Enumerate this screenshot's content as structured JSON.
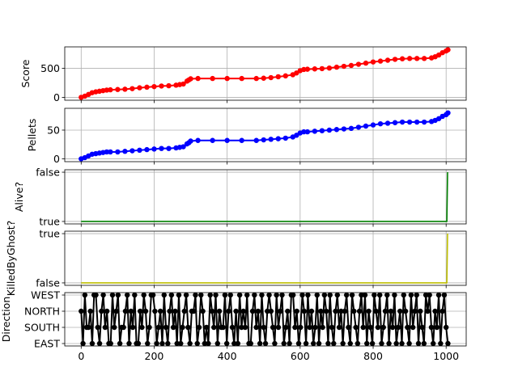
{
  "chart_data": [
    {
      "type": "line",
      "ylabel": "Score",
      "xlim": [
        -45,
        1055
      ],
      "ylim": [
        -50,
        870
      ],
      "xticks": [
        0,
        200,
        400,
        600,
        800,
        1000
      ],
      "yticks": [
        0,
        500
      ],
      "ytick_labels": [
        "0",
        "500"
      ],
      "grid": true,
      "markers": true,
      "color": "#ff0000",
      "x": [
        0,
        10,
        20,
        30,
        40,
        50,
        60,
        70,
        80,
        100,
        120,
        140,
        160,
        180,
        200,
        220,
        240,
        260,
        270,
        280,
        290,
        295,
        300,
        320,
        360,
        400,
        440,
        480,
        500,
        520,
        540,
        560,
        580,
        590,
        600,
        610,
        620,
        640,
        660,
        680,
        700,
        720,
        740,
        760,
        780,
        800,
        820,
        840,
        860,
        880,
        900,
        920,
        940,
        960,
        970,
        980,
        990,
        1000,
        1005
      ],
      "values": [
        0,
        20,
        50,
        80,
        95,
        105,
        115,
        125,
        130,
        135,
        140,
        150,
        165,
        175,
        185,
        195,
        200,
        210,
        220,
        230,
        280,
        300,
        320,
        325,
        325,
        325,
        325,
        325,
        330,
        340,
        355,
        370,
        390,
        420,
        460,
        480,
        485,
        490,
        495,
        505,
        520,
        535,
        550,
        570,
        590,
        610,
        625,
        640,
        655,
        665,
        670,
        670,
        670,
        680,
        700,
        730,
        770,
        800,
        820
      ]
    },
    {
      "type": "line",
      "ylabel": "Pellets",
      "xlim": [
        -45,
        1055
      ],
      "ylim": [
        -5,
        88
      ],
      "xticks": [
        0,
        200,
        400,
        600,
        800,
        1000
      ],
      "yticks": [
        0,
        50
      ],
      "ytick_labels": [
        "0",
        "50"
      ],
      "grid": true,
      "markers": true,
      "color": "#0000ff",
      "x": [
        0,
        10,
        20,
        30,
        40,
        50,
        60,
        70,
        80,
        100,
        120,
        140,
        160,
        180,
        200,
        220,
        240,
        260,
        270,
        280,
        290,
        295,
        300,
        320,
        360,
        400,
        440,
        480,
        500,
        520,
        540,
        560,
        580,
        590,
        600,
        610,
        620,
        640,
        660,
        680,
        700,
        720,
        740,
        760,
        780,
        800,
        820,
        840,
        860,
        880,
        900,
        920,
        940,
        960,
        970,
        980,
        990,
        1000,
        1005
      ],
      "values": [
        0,
        2,
        5,
        8,
        9,
        10,
        11,
        12,
        12,
        12,
        13,
        14,
        15,
        16,
        17,
        18,
        18,
        19,
        20,
        21,
        26,
        28,
        31,
        32,
        32,
        32,
        32,
        32,
        33,
        34,
        35,
        36,
        38,
        41,
        45,
        47,
        47,
        48,
        49,
        50,
        51,
        52,
        53,
        55,
        57,
        59,
        61,
        62,
        63,
        64,
        64,
        64,
        64,
        65,
        67,
        70,
        74,
        77,
        80
      ]
    },
    {
      "type": "line",
      "ylabel": "Alive?",
      "xlim": [
        -45,
        1055
      ],
      "ylim": [
        -0.05,
        1.05
      ],
      "xticks": [
        0,
        200,
        400,
        600,
        800,
        1000
      ],
      "yticks": [
        0,
        1
      ],
      "ytick_labels": [
        "true",
        "false"
      ],
      "grid": true,
      "markers": false,
      "color": "#008000",
      "x": [
        0,
        1002,
        1004
      ],
      "values": [
        0,
        0,
        1
      ]
    },
    {
      "type": "line",
      "ylabel": "KilledByGhost?",
      "xlim": [
        -45,
        1055
      ],
      "ylim": [
        -0.05,
        1.05
      ],
      "xticks": [
        0,
        200,
        400,
        600,
        800,
        1000
      ],
      "yticks": [
        0,
        1
      ],
      "ytick_labels": [
        "false",
        "true"
      ],
      "grid": true,
      "markers": false,
      "color": "#bfbf00",
      "x": [
        0,
        1002,
        1004
      ],
      "values": [
        0,
        0,
        1
      ]
    },
    {
      "type": "line",
      "ylabel": "Direction",
      "xlim": [
        -45,
        1055
      ],
      "ylim": [
        -0.15,
        3.15
      ],
      "xticks": [
        0,
        200,
        400,
        600,
        800,
        1000
      ],
      "xtick_labels": [
        "0",
        "200",
        "400",
        "600",
        "800",
        "1000"
      ],
      "yticks": [
        0,
        1,
        2,
        3
      ],
      "ytick_labels": [
        "EAST",
        "SOUTH",
        "NORTH",
        "WEST"
      ],
      "grid": true,
      "markers": true,
      "color": "#000000",
      "x_range": [
        0,
        1005
      ],
      "values": [
        2,
        0,
        3,
        1,
        1,
        2,
        0,
        3,
        3,
        1,
        0,
        2,
        3,
        1,
        2,
        0,
        0,
        3,
        1,
        2,
        3,
        0,
        1,
        1,
        2,
        3,
        0,
        2,
        1,
        3,
        0,
        0,
        2,
        1,
        3,
        2,
        0,
        1,
        3,
        3,
        2,
        0,
        1,
        2,
        0,
        3,
        1,
        0,
        2,
        3,
        1,
        2,
        0,
        3,
        0,
        1,
        2,
        3,
        1,
        0,
        2,
        2,
        3,
        0,
        1,
        3,
        2,
        0,
        1,
        0,
        3,
        2,
        1,
        3,
        0,
        2,
        1,
        1,
        3,
        0,
        2,
        3,
        1,
        0,
        2,
        0,
        3,
        1,
        2,
        1,
        3,
        0,
        0,
        2,
        3,
        1,
        2,
        0,
        3,
        1,
        0,
        2,
        3,
        2,
        1,
        0,
        3,
        1,
        2,
        3,
        0,
        1,
        2,
        0,
        3,
        3,
        1,
        2,
        0,
        1,
        3,
        2,
        0,
        3,
        1,
        2,
        0,
        1,
        3,
        0,
        2,
        1,
        3,
        2,
        0,
        3,
        1,
        0,
        2,
        3,
        1,
        2,
        0,
        2,
        3,
        1,
        0,
        3,
        2,
        1,
        0,
        2,
        3,
        1,
        3,
        0,
        2,
        1,
        0,
        3,
        2,
        1,
        3,
        0,
        1,
        2,
        3,
        0,
        2,
        1,
        3,
        0,
        1,
        2,
        0,
        3,
        2,
        1,
        0,
        3,
        1,
        2,
        3,
        0,
        2,
        1,
        0,
        3,
        2,
        3,
        1,
        0,
        2,
        1,
        3,
        0,
        2,
        3,
        1,
        0
      ]
    }
  ]
}
